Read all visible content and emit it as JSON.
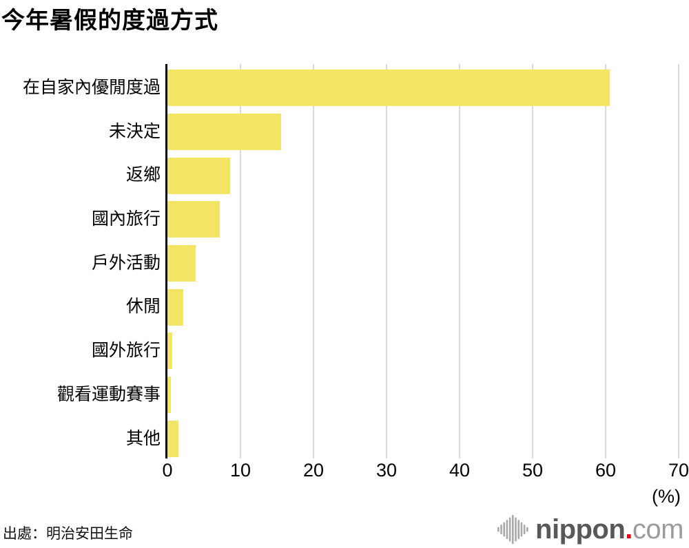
{
  "title": "今年暑假的度過方式",
  "source": "出處：明治安田生命",
  "logo": {
    "text_main": "nippon",
    "dot": ".",
    "text_suffix": "com"
  },
  "chart_data": {
    "type": "bar",
    "orientation": "horizontal",
    "title": "今年暑假的度過方式",
    "categories": [
      "在自家內優閒度過",
      "未決定",
      "返鄉",
      "國內旅行",
      "戶外活動",
      "休閒",
      "國外旅行",
      "觀看運動賽事",
      "其他"
    ],
    "values": [
      60.6,
      15.6,
      8.6,
      7.2,
      3.9,
      2.2,
      0.7,
      0.5,
      1.5
    ],
    "xlabel": "(%)",
    "xlim": [
      0,
      70
    ],
    "xticks": [
      0,
      10,
      20,
      30,
      40,
      50,
      60,
      70
    ],
    "grid": true,
    "legend": false,
    "bar_color": "#f4e564",
    "gridline_color": "#dadada",
    "axis_color": "#000000"
  }
}
